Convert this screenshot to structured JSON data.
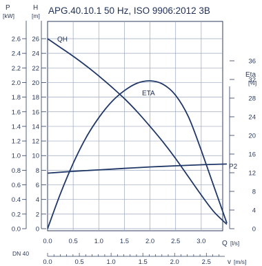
{
  "chart_data": {
    "type": "line",
    "title": "APG.40.10.1 50 Hz, ISO 9906:2012 3B",
    "colors": {
      "curve": "#1f3766",
      "grid": "#9aa6bd",
      "axis": "#2a3a5c",
      "plot_bg": "#ffffff"
    },
    "x_axis": {
      "label": "Q",
      "unit": "[l/s]",
      "range": [
        0,
        3.5
      ],
      "ticks": [
        "0.0",
        "0.5",
        "1.0",
        "1.5",
        "2.0",
        "2.5",
        "3.0"
      ]
    },
    "velocity_axis": {
      "prefix": "DN 40",
      "label": "v",
      "unit": "[m/s]",
      "range": [
        0,
        2.79
      ],
      "ticks": [
        "0.0",
        "0.5",
        "1.0",
        "1.5",
        "2.0",
        "2.5"
      ]
    },
    "power_axis": {
      "label": "P",
      "unit": "[kW]",
      "range": [
        0,
        2.6
      ],
      "ticks": [
        "0.0",
        "0.2",
        "0.4",
        "0.6",
        "0.8",
        "1.0",
        "1.2",
        "1.4",
        "1.6",
        "1.8",
        "2.0",
        "2.2",
        "2.4",
        "2.6"
      ]
    },
    "head_axis": {
      "label": "H",
      "unit": "[m]",
      "range": [
        0,
        26
      ],
      "ticks": [
        "0",
        "2",
        "4",
        "6",
        "8",
        "10",
        "12",
        "14",
        "16",
        "18",
        "20",
        "22",
        "24",
        "26"
      ]
    },
    "eta_axis": {
      "label": "Eta",
      "unit": "[%]",
      "range": [
        0,
        40
      ],
      "ticks": [
        "0",
        "4",
        "8",
        "12",
        "16",
        "20",
        "24",
        "28",
        "32",
        "36"
      ]
    },
    "grid": true,
    "series": [
      {
        "name": "QH",
        "axis": "head",
        "points": [
          [
            0,
            26
          ],
          [
            0.25,
            24.8
          ],
          [
            0.5,
            23.6
          ],
          [
            0.75,
            22.3
          ],
          [
            1.0,
            20.9
          ],
          [
            1.25,
            19.4
          ],
          [
            1.5,
            17.8
          ],
          [
            1.75,
            16.0
          ],
          [
            2.0,
            14.0
          ],
          [
            2.25,
            11.9
          ],
          [
            2.5,
            9.6
          ],
          [
            2.75,
            7.1
          ],
          [
            3.0,
            4.6
          ],
          [
            3.25,
            2.3
          ],
          [
            3.5,
            0.6
          ]
        ]
      },
      {
        "name": "ETA",
        "axis": "eta",
        "points": [
          [
            0,
            0
          ],
          [
            0.25,
            7.5
          ],
          [
            0.5,
            14.0
          ],
          [
            0.75,
            19.5
          ],
          [
            1.0,
            23.8
          ],
          [
            1.25,
            27.2
          ],
          [
            1.5,
            29.6
          ],
          [
            1.75,
            31.2
          ],
          [
            2.0,
            31.7
          ],
          [
            2.25,
            31.0
          ],
          [
            2.5,
            28.6
          ],
          [
            2.75,
            24.0
          ],
          [
            3.0,
            16.8
          ],
          [
            3.25,
            9.0
          ],
          [
            3.5,
            1.2
          ]
        ]
      },
      {
        "name": "P2",
        "axis": "power",
        "points": [
          [
            0,
            0.76
          ],
          [
            0.5,
            0.785
          ],
          [
            1.0,
            0.805
          ],
          [
            1.5,
            0.825
          ],
          [
            2.0,
            0.845
          ],
          [
            2.5,
            0.86
          ],
          [
            3.0,
            0.875
          ],
          [
            3.5,
            0.885
          ]
        ]
      }
    ]
  }
}
